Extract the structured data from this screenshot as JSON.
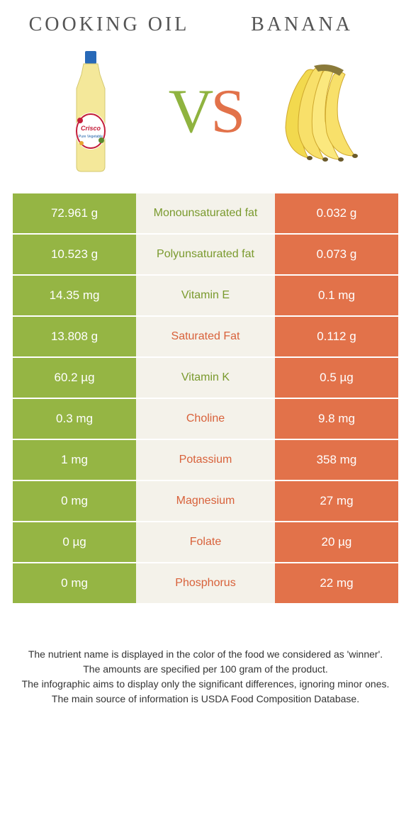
{
  "left": {
    "title": "Cooking oil"
  },
  "right": {
    "title": "Banana"
  },
  "vs": {
    "v": "V",
    "s": "S"
  },
  "colors": {
    "green": "#95b544",
    "orange": "#e2724a",
    "mid_bg": "#f4f2ea",
    "green_text": "#7a9a2e",
    "orange_text": "#d8613a"
  },
  "rows": [
    {
      "left": "72.961 g",
      "label": "Monounsaturated fat",
      "winner": "green",
      "right": "0.032 g"
    },
    {
      "left": "10.523 g",
      "label": "Polyunsaturated fat",
      "winner": "green",
      "right": "0.073 g"
    },
    {
      "left": "14.35 mg",
      "label": "Vitamin E",
      "winner": "green",
      "right": "0.1 mg"
    },
    {
      "left": "13.808 g",
      "label": "Saturated Fat",
      "winner": "orange",
      "right": "0.112 g"
    },
    {
      "left": "60.2 µg",
      "label": "Vitamin K",
      "winner": "green",
      "right": "0.5 µg"
    },
    {
      "left": "0.3 mg",
      "label": "Choline",
      "winner": "orange",
      "right": "9.8 mg"
    },
    {
      "left": "1 mg",
      "label": "Potassium",
      "winner": "orange",
      "right": "358 mg"
    },
    {
      "left": "0 mg",
      "label": "Magnesium",
      "winner": "orange",
      "right": "27 mg"
    },
    {
      "left": "0 µg",
      "label": "Folate",
      "winner": "orange",
      "right": "20 µg"
    },
    {
      "left": "0 mg",
      "label": "Phosphorus",
      "winner": "orange",
      "right": "22 mg"
    }
  ],
  "footer": {
    "line1": "The nutrient name is displayed in the color of the food we considered as 'winner'.",
    "line2": "The amounts are specified per 100 gram of the product.",
    "line3": "The infographic aims to display only the significant differences, ignoring minor ones.",
    "line4": "The main source of information is USDA Food Composition Database."
  }
}
